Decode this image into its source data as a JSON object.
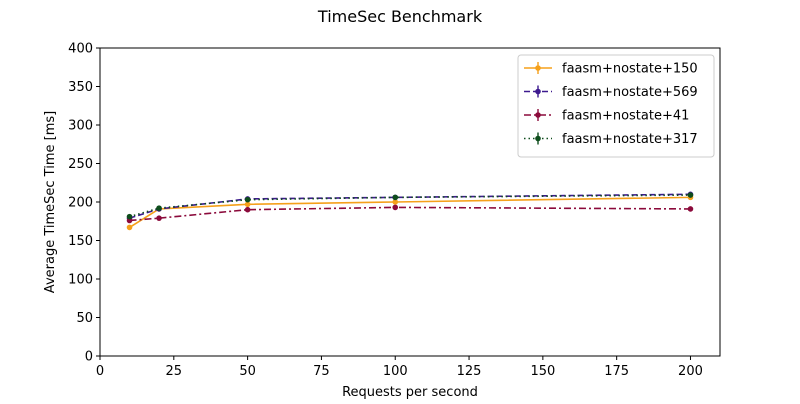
{
  "chart_data": {
    "type": "line",
    "title": "TimeSec Benchmark",
    "xlabel": "Requests per second",
    "ylabel": "Average TimeSec Time [ms]",
    "xlim": [
      0,
      210
    ],
    "ylim": [
      0,
      400
    ],
    "xticks": [
      0,
      25,
      50,
      75,
      100,
      125,
      150,
      175,
      200
    ],
    "yticks": [
      0,
      50,
      100,
      150,
      200,
      250,
      300,
      350,
      400
    ],
    "grid": false,
    "legend_position": "top-right",
    "x": [
      10,
      20,
      50,
      100,
      200
    ],
    "series": [
      {
        "name": "faasm+nostate+150",
        "values": [
          167,
          191,
          197,
          200,
          206
        ],
        "color": "#f5a01a",
        "dash": "solid"
      },
      {
        "name": "faasm+nostate+569",
        "values": [
          179,
          191,
          204,
          206,
          210
        ],
        "color": "#3d1a8f",
        "dash": "dashed"
      },
      {
        "name": "faasm+nostate+41",
        "values": [
          176,
          179,
          190,
          193,
          191
        ],
        "color": "#8b0a3b",
        "dash": "dashdot"
      },
      {
        "name": "faasm+nostate+317",
        "values": [
          181,
          192,
          203,
          206,
          209
        ],
        "color": "#0e4d1c",
        "dash": "dotted"
      }
    ]
  }
}
